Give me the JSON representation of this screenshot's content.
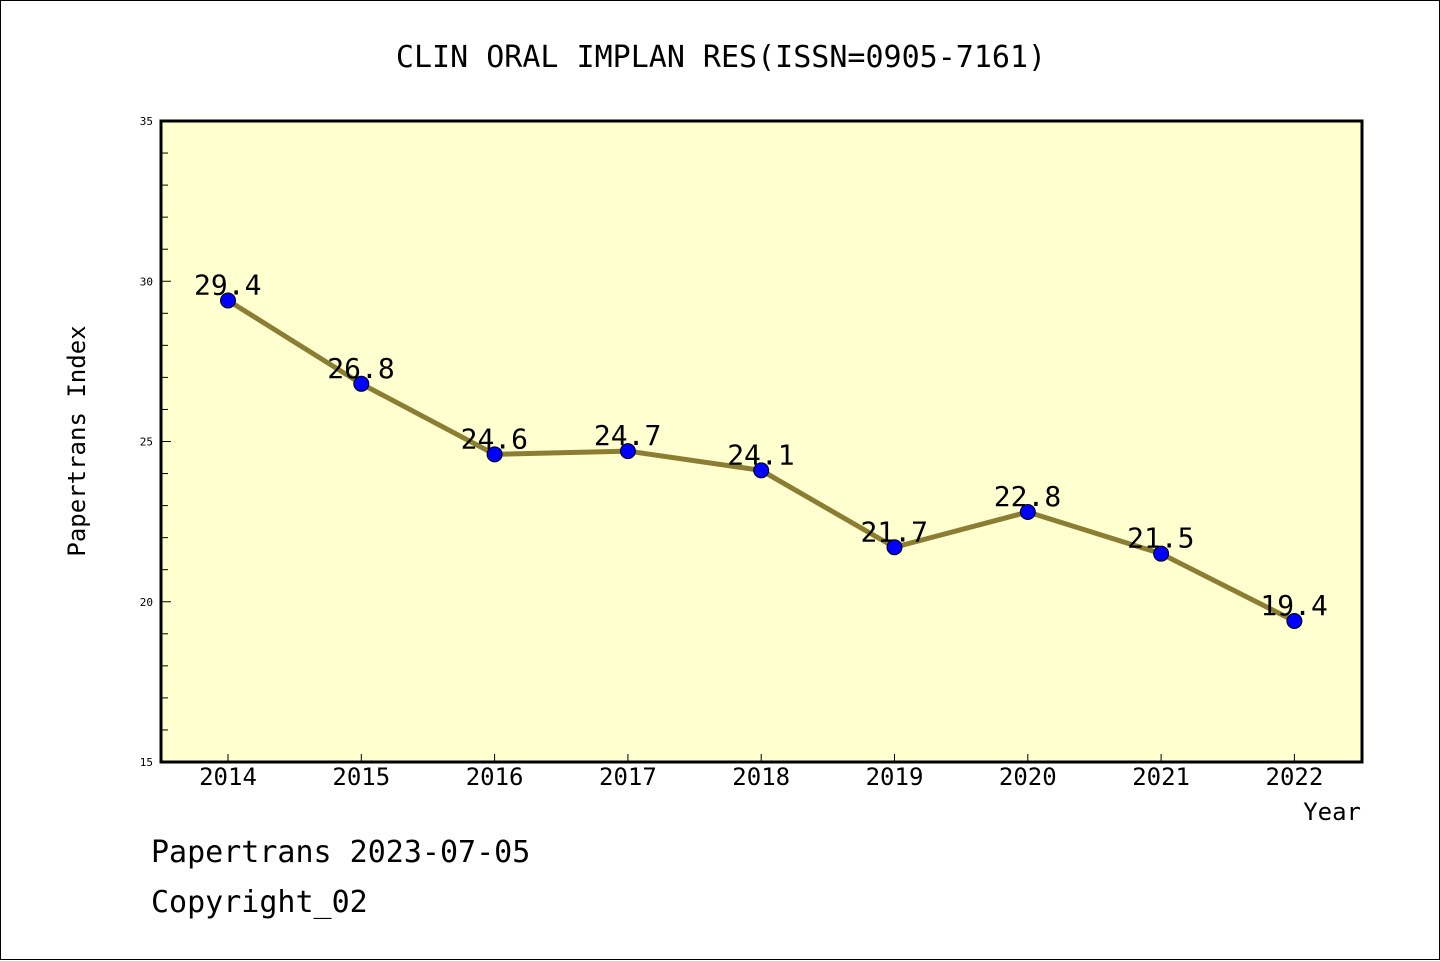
{
  "chart_data": {
    "type": "line",
    "title": "CLIN ORAL IMPLAN RES(ISSN=0905-7161)",
    "xlabel": "Year",
    "ylabel": "Papertrans Index",
    "categories": [
      "2014",
      "2015",
      "2016",
      "2017",
      "2018",
      "2019",
      "2020",
      "2021",
      "2022"
    ],
    "series": [
      {
        "values": [
          29.4,
          26.8,
          24.6,
          24.7,
          24.1,
          21.7,
          22.8,
          21.5,
          19.4
        ]
      }
    ],
    "data_labels": [
      "29.4",
      "26.8",
      "24.6",
      "24.7",
      "24.1",
      "21.7",
      "22.8",
      "21.5",
      "19.4"
    ],
    "ylim": [
      15,
      35
    ],
    "y_major_ticks": [
      15,
      20,
      25,
      30,
      35
    ],
    "y_minor_step": 1,
    "grid": false,
    "colors": {
      "plot_background": "#ffffd0",
      "line": "#8b7d32",
      "marker": "#0000ff",
      "marker_edge": "#000000"
    }
  },
  "footer": {
    "line1": "Papertrans 2023-07-05",
    "line2": "Copyright_02"
  }
}
